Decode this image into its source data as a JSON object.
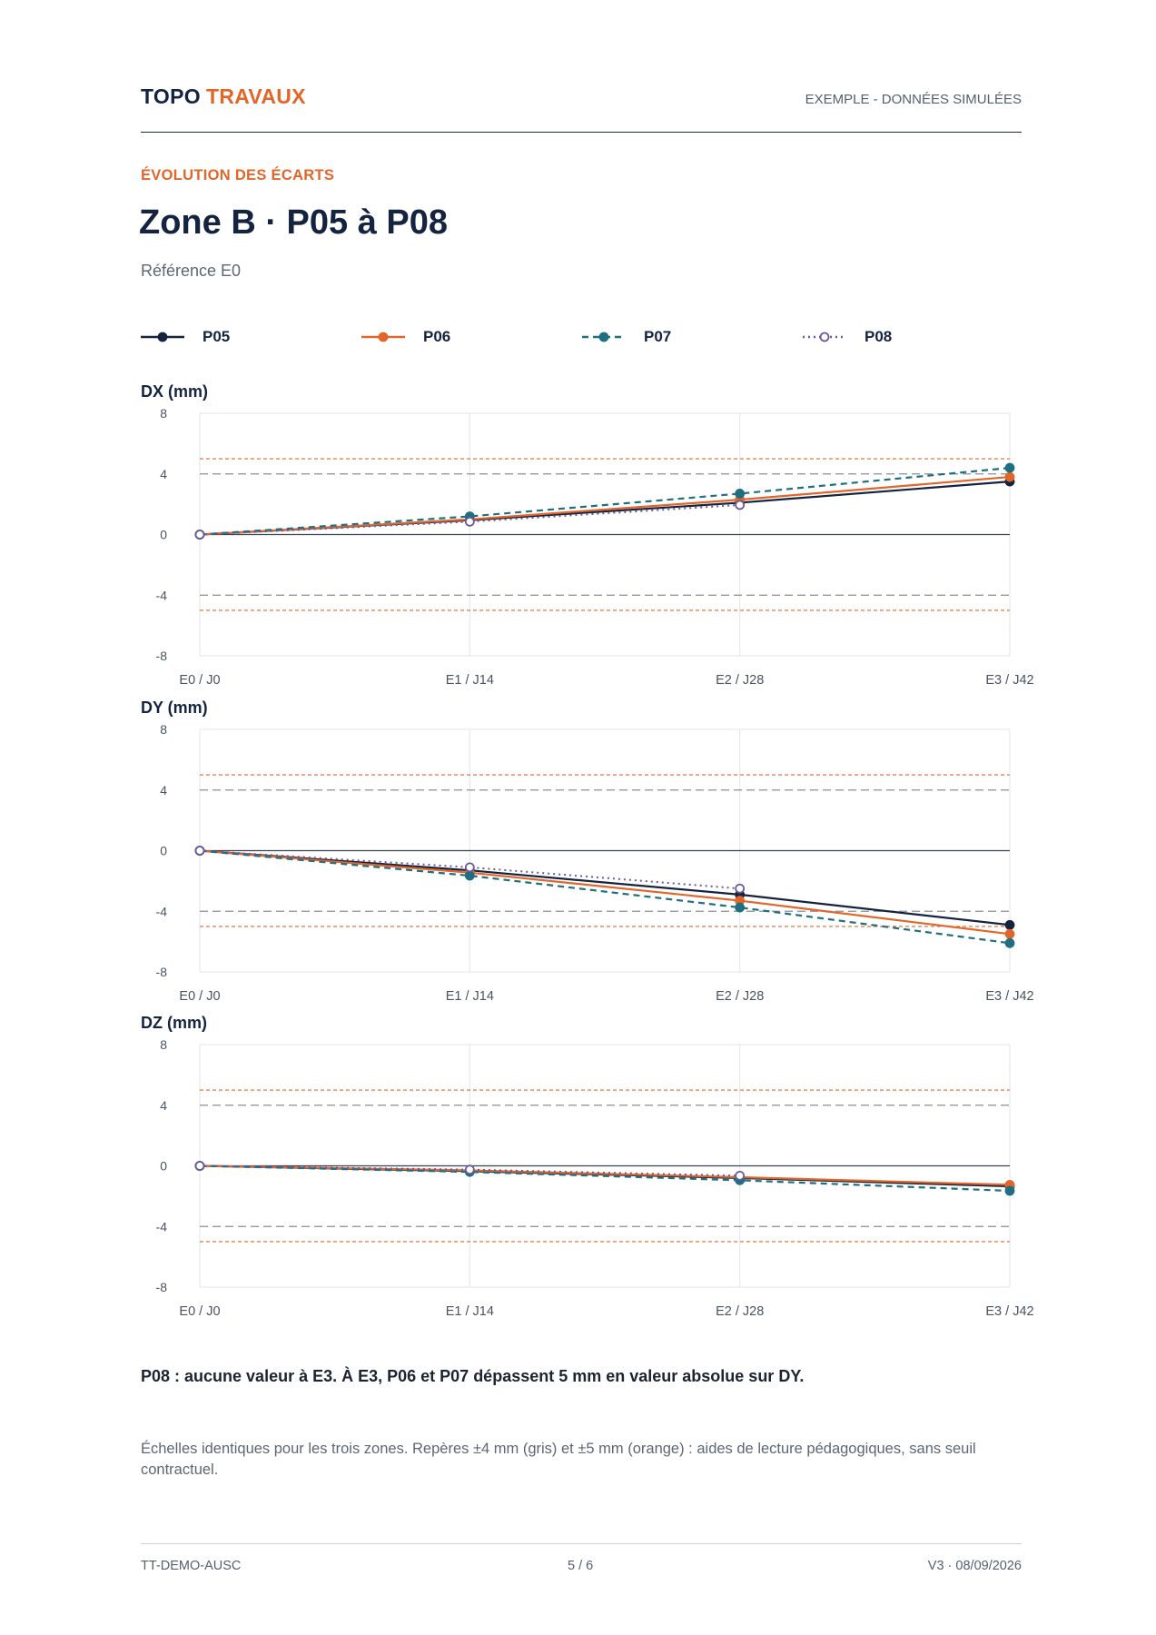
{
  "header": {
    "brand_part1": "TOPO",
    "brand_part2": "TRAVAUX",
    "badge": "EXEMPLE - DONNÉES SIMULÉES"
  },
  "kicker": "ÉVOLUTION DES ÉCARTS",
  "title": "Zone B · P05 à P08",
  "subtitle": "Référence E0",
  "colors": {
    "P05": "#14233f",
    "P06": "#e2662a",
    "P07": "#1f6f80",
    "P08": "#6a5a9a",
    "grid": "#e3e5e8",
    "ref_gray": "#8a8f96",
    "ref_orange": "#e2662a"
  },
  "legend": [
    {
      "name": "P05",
      "style": "solid",
      "marker": "filled",
      "color": "#14233f"
    },
    {
      "name": "P06",
      "style": "solid",
      "marker": "filled",
      "color": "#e2662a"
    },
    {
      "name": "P07",
      "style": "dashed",
      "marker": "filled",
      "color": "#1f6f80"
    },
    {
      "name": "P08",
      "style": "dotted",
      "marker": "open",
      "color": "#6a5a9a"
    }
  ],
  "chart_data": [
    {
      "type": "line",
      "title": "DX (mm)",
      "categories": [
        "E0 / J0",
        "E1 / J14",
        "E2 / J28",
        "E3 / J42"
      ],
      "ylim": [
        -8,
        8
      ],
      "yticks": [
        8,
        4,
        0,
        -4,
        -8
      ],
      "reference_lines": [
        {
          "value": 4,
          "color": "gray"
        },
        {
          "value": -4,
          "color": "gray"
        },
        {
          "value": 5,
          "color": "orange"
        },
        {
          "value": -5,
          "color": "orange"
        }
      ],
      "series": [
        {
          "name": "P05",
          "values": [
            0,
            0.95,
            2.1,
            3.5
          ]
        },
        {
          "name": "P06",
          "values": [
            0,
            1.0,
            2.3,
            3.8
          ]
        },
        {
          "name": "P07",
          "values": [
            0,
            1.2,
            2.7,
            4.4
          ]
        },
        {
          "name": "P08",
          "values": [
            0,
            0.85,
            1.95,
            null
          ]
        }
      ]
    },
    {
      "type": "line",
      "title": "DY (mm)",
      "categories": [
        "E0 / J0",
        "E1 / J14",
        "E2 / J28",
        "E3 / J42"
      ],
      "ylim": [
        -8,
        8
      ],
      "yticks": [
        8,
        4,
        0,
        -4,
        -8
      ],
      "reference_lines": [
        {
          "value": 4,
          "color": "gray"
        },
        {
          "value": -4,
          "color": "gray"
        },
        {
          "value": 5,
          "color": "orange"
        },
        {
          "value": -5,
          "color": "orange"
        }
      ],
      "series": [
        {
          "name": "P05",
          "values": [
            0,
            -1.3,
            -2.9,
            -4.9
          ]
        },
        {
          "name": "P06",
          "values": [
            0,
            -1.45,
            -3.3,
            -5.5
          ]
        },
        {
          "name": "P07",
          "values": [
            0,
            -1.65,
            -3.75,
            -6.1
          ]
        },
        {
          "name": "P08",
          "values": [
            0,
            -1.1,
            -2.5,
            null
          ]
        }
      ]
    },
    {
      "type": "line",
      "title": "DZ (mm)",
      "categories": [
        "E0 / J0",
        "E1 / J14",
        "E2 / J28",
        "E3 / J42"
      ],
      "ylim": [
        -8,
        8
      ],
      "yticks": [
        8,
        4,
        0,
        -4,
        -8
      ],
      "reference_lines": [
        {
          "value": 4,
          "color": "gray"
        },
        {
          "value": -4,
          "color": "gray"
        },
        {
          "value": 5,
          "color": "orange"
        },
        {
          "value": -5,
          "color": "orange"
        }
      ],
      "series": [
        {
          "name": "P05",
          "values": [
            0,
            -0.35,
            -0.8,
            -1.35
          ]
        },
        {
          "name": "P06",
          "values": [
            0,
            -0.3,
            -0.75,
            -1.25
          ]
        },
        {
          "name": "P07",
          "values": [
            0,
            -0.4,
            -0.95,
            -1.65
          ]
        },
        {
          "name": "P08",
          "values": [
            0,
            -0.25,
            -0.65,
            null
          ]
        }
      ]
    }
  ],
  "note": "P08 : aucune valeur à E3. À E3, P06 et P07 dépassent 5 mm en valeur absolue sur DY.",
  "caption": "Échelles identiques pour les trois zones. Repères ±4 mm (gris) et ±5 mm (orange) : aides de lecture pédagogiques, sans seuil contractuel.",
  "footer": {
    "left": "TT-DEMO-AUSC",
    "center": "5 / 6",
    "right": "V3 · 08/09/2026"
  }
}
